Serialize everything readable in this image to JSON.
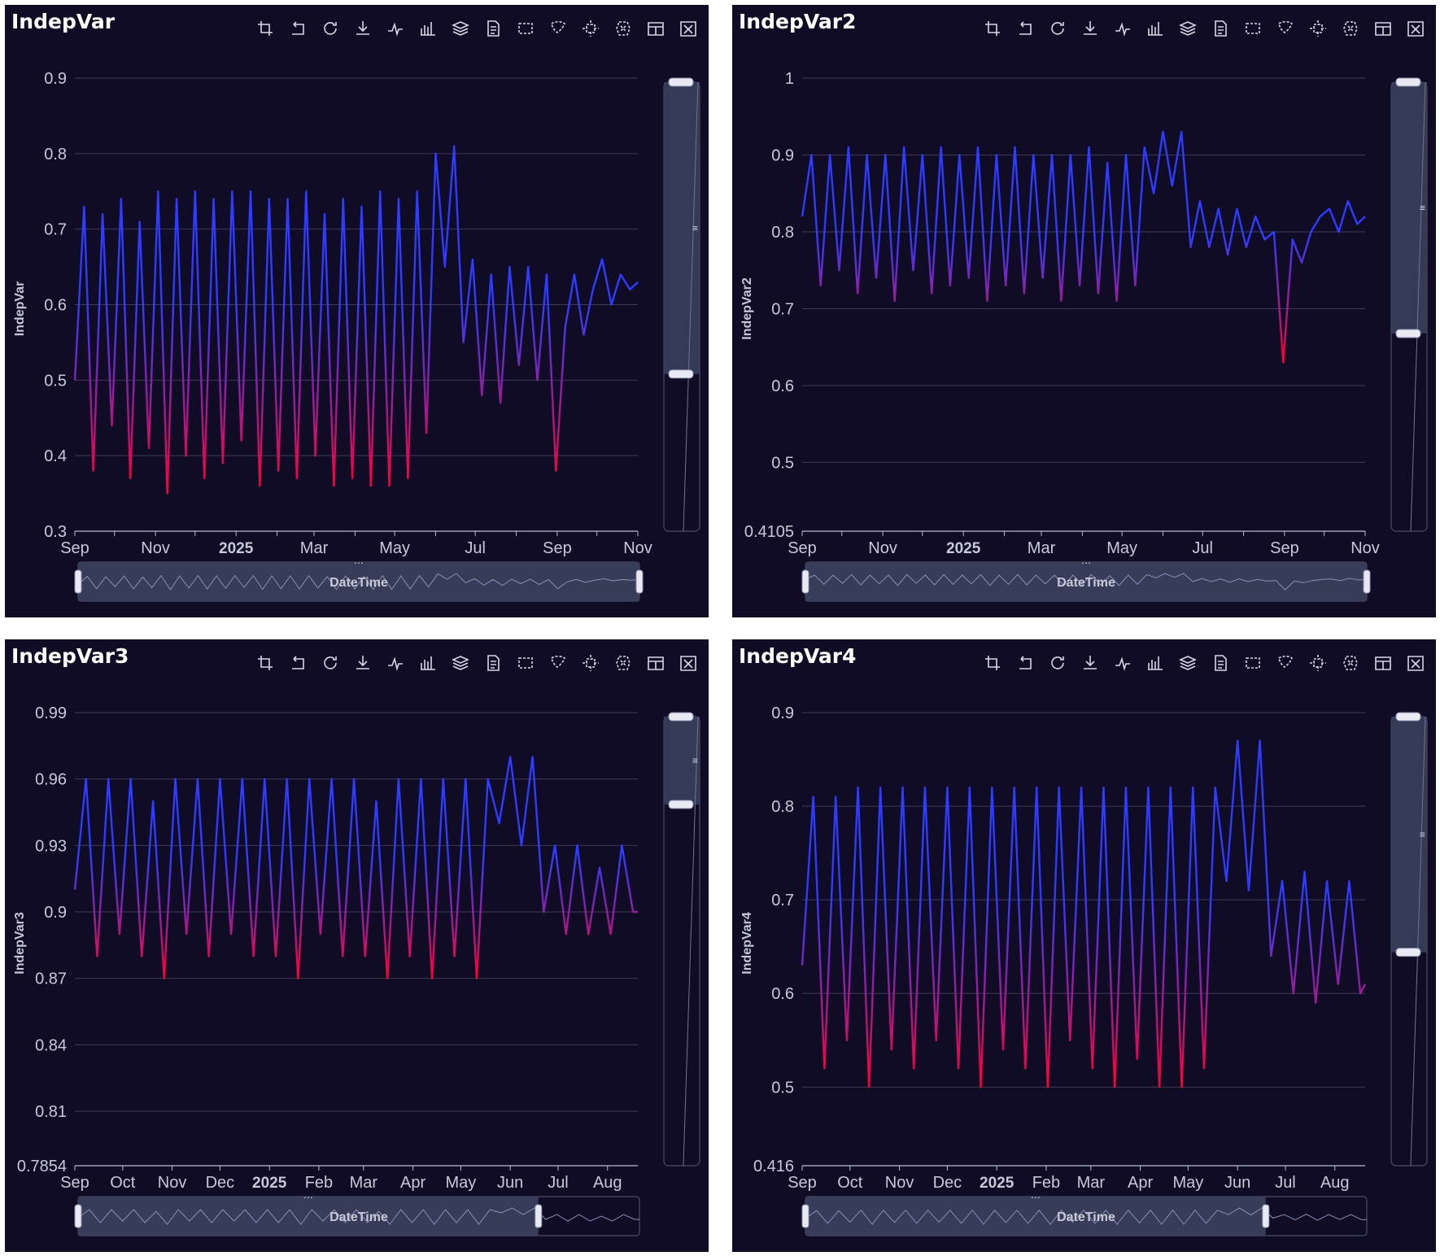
{
  "theme": {
    "background": "#100c26",
    "grid": "#3e3c55",
    "axis": "#b9bccf",
    "text": "#c7c9d8",
    "line_high": "#2f3cff",
    "line_low": "#ff0033",
    "zoom_fill": "#3a3f5c"
  },
  "toolbar_icons": [
    "zoom-select-icon",
    "zoom-back-icon",
    "restore-icon",
    "save-image-icon",
    "line-chart-icon",
    "bar-chart-icon",
    "stack-icon",
    "data-view-icon",
    "rect-brush-icon",
    "lasso-brush-icon",
    "keep-selection-icon",
    "clear-selection-icon",
    "tiled-icon",
    "clear-icon"
  ],
  "zoom_handle_label": "DateTime",
  "panels": [
    {
      "title": "IndepVar",
      "ylabel": "IndepVar",
      "y_ticks": [
        "0.9",
        "0.8",
        "0.7",
        "0.6",
        "0.5",
        "0.4",
        "0.3"
      ],
      "x_ticks": [
        "Sep",
        "Nov",
        "2025",
        "Mar",
        "May",
        "Jul",
        "Sep",
        "Nov"
      ],
      "x_bold_tick": "2025",
      "slider_label": "DateTime"
    },
    {
      "title": "IndepVar2",
      "ylabel": "IndepVar2",
      "y_ticks": [
        "1",
        "0.9",
        "0.8",
        "0.7",
        "0.6",
        "0.5",
        "0.4105"
      ],
      "x_ticks": [
        "Sep",
        "Nov",
        "2025",
        "Mar",
        "May",
        "Jul",
        "Sep",
        "Nov"
      ],
      "x_bold_tick": "2025",
      "slider_label": "DateTime"
    },
    {
      "title": "IndepVar3",
      "ylabel": "IndepVar3",
      "y_ticks": [
        "0.99",
        "0.96",
        "0.93",
        "0.9",
        "0.87",
        "0.84",
        "0.81",
        "0.7854"
      ],
      "x_ticks": [
        "Sep",
        "Oct",
        "Nov",
        "Dec",
        "2025",
        "Feb",
        "Mar",
        "Apr",
        "May",
        "Jun",
        "Jul",
        "Aug"
      ],
      "x_bold_tick": "2025",
      "slider_label": "DateTime"
    },
    {
      "title": "IndepVar4",
      "ylabel": "IndepVar4",
      "y_ticks": [
        "0.9",
        "0.8",
        "0.7",
        "0.6",
        "0.5",
        "0.416"
      ],
      "x_ticks": [
        "Sep",
        "Oct",
        "Nov",
        "Dec",
        "2025",
        "Feb",
        "Mar",
        "Apr",
        "May",
        "Jun",
        "Jul",
        "Aug"
      ],
      "x_bold_tick": "2025",
      "slider_label": "DateTime"
    }
  ],
  "chart_data": [
    {
      "type": "line",
      "title": "IndepVar",
      "xlabel": "",
      "ylabel": "IndepVar",
      "xlim": [
        "2024-09-01",
        "2025-11-01"
      ],
      "ylim": [
        0.3,
        0.9
      ],
      "grid": true,
      "vertical_range_slider": [
        0.51,
        0.9
      ],
      "x_zoom_window": [
        0,
        1
      ],
      "series": [
        {
          "x": [
            "2024-09-01",
            "2024-09-08",
            "2024-09-15",
            "2024-09-22",
            "2024-09-29",
            "2024-10-06",
            "2024-10-13",
            "2024-10-20",
            "2024-10-27",
            "2024-11-03",
            "2024-11-10",
            "2024-11-17",
            "2024-11-24",
            "2024-12-01",
            "2024-12-08",
            "2024-12-15",
            "2024-12-22",
            "2024-12-29",
            "2025-01-05",
            "2025-01-12",
            "2025-01-19",
            "2025-01-26",
            "2025-02-02",
            "2025-02-09",
            "2025-02-16",
            "2025-02-23",
            "2025-03-02",
            "2025-03-09",
            "2025-03-16",
            "2025-03-23",
            "2025-03-30",
            "2025-04-06",
            "2025-04-13",
            "2025-04-20",
            "2025-04-27",
            "2025-05-04",
            "2025-05-11",
            "2025-05-18",
            "2025-05-25",
            "2025-06-01",
            "2025-06-08",
            "2025-06-15",
            "2025-06-22",
            "2025-06-29",
            "2025-07-06",
            "2025-07-13",
            "2025-07-20",
            "2025-07-27",
            "2025-08-03",
            "2025-08-10",
            "2025-08-17",
            "2025-08-24",
            "2025-08-31",
            "2025-09-07",
            "2025-09-14",
            "2025-09-21",
            "2025-09-28",
            "2025-10-05",
            "2025-10-12",
            "2025-10-19",
            "2025-10-26",
            "2025-11-01"
          ],
          "y": [
            0.5,
            0.73,
            0.38,
            0.72,
            0.44,
            0.74,
            0.37,
            0.71,
            0.41,
            0.75,
            0.35,
            0.74,
            0.4,
            0.75,
            0.37,
            0.74,
            0.39,
            0.75,
            0.42,
            0.75,
            0.36,
            0.74,
            0.38,
            0.74,
            0.37,
            0.75,
            0.4,
            0.72,
            0.36,
            0.74,
            0.37,
            0.73,
            0.36,
            0.75,
            0.36,
            0.74,
            0.37,
            0.75,
            0.43,
            0.8,
            0.65,
            0.81,
            0.55,
            0.66,
            0.48,
            0.64,
            0.47,
            0.65,
            0.52,
            0.65,
            0.5,
            0.64,
            0.38,
            0.57,
            0.64,
            0.56,
            0.62,
            0.66,
            0.6,
            0.64,
            0.62,
            0.63
          ]
        }
      ]
    },
    {
      "type": "line",
      "title": "IndepVar2",
      "xlabel": "",
      "ylabel": "IndepVar2",
      "xlim": [
        "2024-09-01",
        "2025-11-01"
      ],
      "ylim": [
        0.4105,
        1.0
      ],
      "grid": true,
      "vertical_range_slider": [
        0.67,
        1.0
      ],
      "x_zoom_window": [
        0,
        1
      ],
      "series": [
        {
          "x": [
            "2024-09-01",
            "2024-09-08",
            "2024-09-15",
            "2024-09-22",
            "2024-09-29",
            "2024-10-06",
            "2024-10-13",
            "2024-10-20",
            "2024-10-27",
            "2024-11-03",
            "2024-11-10",
            "2024-11-17",
            "2024-11-24",
            "2024-12-01",
            "2024-12-08",
            "2024-12-15",
            "2024-12-22",
            "2024-12-29",
            "2025-01-05",
            "2025-01-12",
            "2025-01-19",
            "2025-01-26",
            "2025-02-02",
            "2025-02-09",
            "2025-02-16",
            "2025-02-23",
            "2025-03-02",
            "2025-03-09",
            "2025-03-16",
            "2025-03-23",
            "2025-03-30",
            "2025-04-06",
            "2025-04-13",
            "2025-04-20",
            "2025-04-27",
            "2025-05-04",
            "2025-05-11",
            "2025-05-18",
            "2025-05-25",
            "2025-06-01",
            "2025-06-08",
            "2025-06-15",
            "2025-06-22",
            "2025-06-29",
            "2025-07-06",
            "2025-07-13",
            "2025-07-20",
            "2025-07-27",
            "2025-08-03",
            "2025-08-10",
            "2025-08-17",
            "2025-08-24",
            "2025-08-31",
            "2025-09-07",
            "2025-09-14",
            "2025-09-21",
            "2025-09-28",
            "2025-10-05",
            "2025-10-12",
            "2025-10-19",
            "2025-10-26",
            "2025-11-01"
          ],
          "y": [
            0.82,
            0.9,
            0.73,
            0.9,
            0.75,
            0.91,
            0.72,
            0.9,
            0.74,
            0.9,
            0.71,
            0.91,
            0.75,
            0.9,
            0.72,
            0.91,
            0.73,
            0.9,
            0.74,
            0.91,
            0.71,
            0.9,
            0.73,
            0.91,
            0.72,
            0.9,
            0.74,
            0.9,
            0.71,
            0.9,
            0.73,
            0.91,
            0.72,
            0.89,
            0.71,
            0.9,
            0.73,
            0.91,
            0.85,
            0.93,
            0.86,
            0.93,
            0.78,
            0.84,
            0.78,
            0.83,
            0.77,
            0.83,
            0.78,
            0.82,
            0.79,
            0.8,
            0.63,
            0.79,
            0.76,
            0.8,
            0.82,
            0.83,
            0.8,
            0.84,
            0.81,
            0.82
          ]
        }
      ]
    },
    {
      "type": "line",
      "title": "IndepVar3",
      "xlabel": "",
      "ylabel": "IndepVar3",
      "xlim": [
        "2024-09-01",
        "2025-08-20"
      ],
      "ylim": [
        0.7854,
        0.99
      ],
      "grid": true,
      "vertical_range_slider": [
        0.95,
        0.99
      ],
      "x_zoom_window": [
        0,
        0.82
      ],
      "series": [
        {
          "x": [
            "2024-09-01",
            "2024-09-08",
            "2024-09-15",
            "2024-09-22",
            "2024-09-29",
            "2024-10-06",
            "2024-10-13",
            "2024-10-20",
            "2024-10-27",
            "2024-11-03",
            "2024-11-10",
            "2024-11-17",
            "2024-11-24",
            "2024-12-01",
            "2024-12-08",
            "2024-12-15",
            "2024-12-22",
            "2024-12-29",
            "2025-01-05",
            "2025-01-12",
            "2025-01-19",
            "2025-01-26",
            "2025-02-02",
            "2025-02-09",
            "2025-02-16",
            "2025-02-23",
            "2025-03-02",
            "2025-03-09",
            "2025-03-16",
            "2025-03-23",
            "2025-03-30",
            "2025-04-06",
            "2025-04-13",
            "2025-04-20",
            "2025-04-27",
            "2025-05-04",
            "2025-05-11",
            "2025-05-18",
            "2025-05-25",
            "2025-06-01",
            "2025-06-08",
            "2025-06-15",
            "2025-06-22",
            "2025-06-29",
            "2025-07-06",
            "2025-07-13",
            "2025-07-20",
            "2025-07-27",
            "2025-08-03",
            "2025-08-10",
            "2025-08-17",
            "2025-08-20"
          ],
          "y": [
            0.91,
            0.96,
            0.88,
            0.96,
            0.89,
            0.96,
            0.88,
            0.95,
            0.87,
            0.96,
            0.89,
            0.96,
            0.88,
            0.96,
            0.89,
            0.96,
            0.88,
            0.96,
            0.88,
            0.96,
            0.87,
            0.96,
            0.89,
            0.96,
            0.88,
            0.96,
            0.88,
            0.95,
            0.87,
            0.96,
            0.88,
            0.96,
            0.87,
            0.96,
            0.88,
            0.96,
            0.87,
            0.96,
            0.94,
            0.97,
            0.93,
            0.97,
            0.9,
            0.93,
            0.89,
            0.93,
            0.89,
            0.92,
            0.89,
            0.93,
            0.9,
            0.9
          ]
        }
      ]
    },
    {
      "type": "line",
      "title": "IndepVar4",
      "xlabel": "",
      "ylabel": "IndepVar4",
      "xlim": [
        "2024-09-01",
        "2025-08-20"
      ],
      "ylim": [
        0.416,
        0.9
      ],
      "grid": true,
      "vertical_range_slider": [
        0.646,
        0.9
      ],
      "x_zoom_window": [
        0,
        0.82
      ],
      "series": [
        {
          "x": [
            "2024-09-01",
            "2024-09-08",
            "2024-09-15",
            "2024-09-22",
            "2024-09-29",
            "2024-10-06",
            "2024-10-13",
            "2024-10-20",
            "2024-10-27",
            "2024-11-03",
            "2024-11-10",
            "2024-11-17",
            "2024-11-24",
            "2024-12-01",
            "2024-12-08",
            "2024-12-15",
            "2024-12-22",
            "2024-12-29",
            "2025-01-05",
            "2025-01-12",
            "2025-01-19",
            "2025-01-26",
            "2025-02-02",
            "2025-02-09",
            "2025-02-16",
            "2025-02-23",
            "2025-03-02",
            "2025-03-09",
            "2025-03-16",
            "2025-03-23",
            "2025-03-30",
            "2025-04-06",
            "2025-04-13",
            "2025-04-20",
            "2025-04-27",
            "2025-05-04",
            "2025-05-11",
            "2025-05-18",
            "2025-05-25",
            "2025-06-01",
            "2025-06-08",
            "2025-06-15",
            "2025-06-22",
            "2025-06-29",
            "2025-07-06",
            "2025-07-13",
            "2025-07-20",
            "2025-07-27",
            "2025-08-03",
            "2025-08-10",
            "2025-08-17",
            "2025-08-20"
          ],
          "y": [
            0.63,
            0.81,
            0.52,
            0.81,
            0.55,
            0.82,
            0.5,
            0.82,
            0.54,
            0.82,
            0.52,
            0.82,
            0.55,
            0.82,
            0.52,
            0.82,
            0.5,
            0.82,
            0.54,
            0.82,
            0.52,
            0.82,
            0.5,
            0.82,
            0.55,
            0.82,
            0.52,
            0.82,
            0.5,
            0.82,
            0.53,
            0.82,
            0.5,
            0.82,
            0.5,
            0.82,
            0.52,
            0.82,
            0.72,
            0.87,
            0.71,
            0.87,
            0.64,
            0.72,
            0.6,
            0.73,
            0.59,
            0.72,
            0.61,
            0.72,
            0.6,
            0.61
          ]
        }
      ]
    }
  ]
}
